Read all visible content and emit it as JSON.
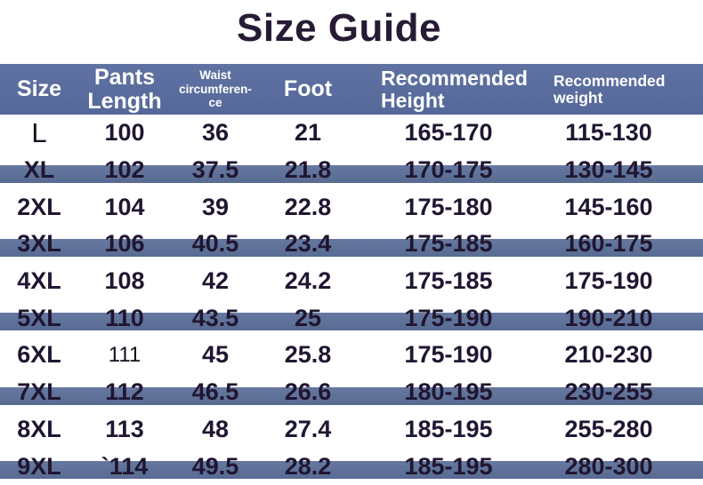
{
  "title": "Size Guide",
  "colors": {
    "header_bg": "#5a6c9b",
    "row_stripe": "#5e7099",
    "title_text": "#271a33",
    "cell_text": "#201631",
    "header_text": "#ffffff",
    "page_bg": "#ffffff"
  },
  "table": {
    "headers": [
      {
        "id": "size",
        "label": "Size"
      },
      {
        "id": "pants-length",
        "label": "Pants\nLength"
      },
      {
        "id": "waist-circumference",
        "label": "Waist\ncircumferen-\nce"
      },
      {
        "id": "foot",
        "label": "Foot"
      },
      {
        "id": "recommended-height",
        "label": "Recommended\nHeight"
      },
      {
        "id": "recommended-weight",
        "label": "Recommended\nweight"
      }
    ],
    "rows": [
      {
        "cells": [
          "L",
          "100",
          "36",
          "21",
          "165-170",
          "115-130"
        ]
      },
      {
        "cells": [
          "XL",
          "102",
          "37.5",
          "21.8",
          "170-175",
          "130-145"
        ]
      },
      {
        "cells": [
          "2XL",
          "104",
          "39",
          "22.8",
          "175-180",
          "145-160"
        ]
      },
      {
        "cells": [
          "3XL",
          "106",
          "40.5",
          "23.4",
          "175-185",
          "160-175"
        ]
      },
      {
        "cells": [
          "4XL",
          "108",
          "42",
          "24.2",
          "175-185",
          "175-190"
        ]
      },
      {
        "cells": [
          "5XL",
          "110",
          "43.5",
          "25",
          "175-190",
          "190-210"
        ]
      },
      {
        "cells": [
          "6XL",
          "111",
          "45",
          "25.8",
          "175-190",
          "210-230"
        ]
      },
      {
        "cells": [
          "7XL",
          "112",
          "46.5",
          "26.6",
          "180-195",
          "230-255"
        ]
      },
      {
        "cells": [
          "8XL",
          "113",
          "48",
          "27.4",
          "185-195",
          "255-280"
        ]
      },
      {
        "cells": [
          "9XL",
          "`114",
          "49.5",
          "28.2",
          "185-195",
          "280-300"
        ]
      }
    ]
  }
}
